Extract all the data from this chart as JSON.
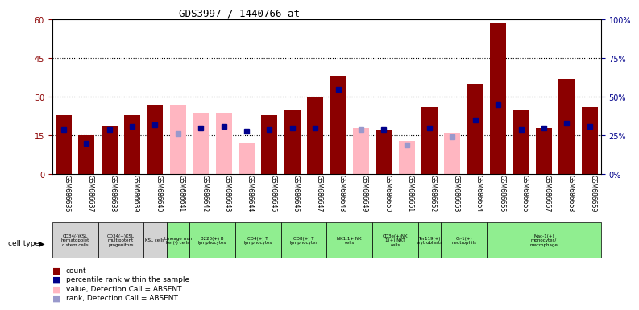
{
  "title": "GDS3997 / 1440766_at",
  "gsm_labels": [
    "GSM686636",
    "GSM686637",
    "GSM686638",
    "GSM686639",
    "GSM686640",
    "GSM686641",
    "GSM686642",
    "GSM686643",
    "GSM686644",
    "GSM686645",
    "GSM686646",
    "GSM686647",
    "GSM686648",
    "GSM686649",
    "GSM686650",
    "GSM686651",
    "GSM686652",
    "GSM686653",
    "GSM686654",
    "GSM686655",
    "GSM686656",
    "GSM686657",
    "GSM686658",
    "GSM686659"
  ],
  "cell_type_groups": [
    {
      "label": "CD34(-)KSL\nhematopoiet\nc stem cells",
      "start": 0,
      "end": 2,
      "color": "#d3d3d3"
    },
    {
      "label": "CD34(+)KSL\nmultipotent\nprogenitors",
      "start": 2,
      "end": 4,
      "color": "#d3d3d3"
    },
    {
      "label": "KSL cells",
      "start": 4,
      "end": 5,
      "color": "#d3d3d3"
    },
    {
      "label": "Lineage mar\nker(-) cells",
      "start": 5,
      "end": 6,
      "color": "#90EE90"
    },
    {
      "label": "B220(+) B\nlymphocytes",
      "start": 6,
      "end": 8,
      "color": "#90EE90"
    },
    {
      "label": "CD4(+) T\nlymphocytes",
      "start": 8,
      "end": 10,
      "color": "#90EE90"
    },
    {
      "label": "CD8(+) T\nlymphocytes",
      "start": 10,
      "end": 12,
      "color": "#90EE90"
    },
    {
      "label": "NK1.1+ NK\ncells",
      "start": 12,
      "end": 14,
      "color": "#90EE90"
    },
    {
      "label": "CD3e(+)NK\n1(+) NKT\ncells",
      "start": 14,
      "end": 16,
      "color": "#90EE90"
    },
    {
      "label": "Ter119(+)\nerytroblasts",
      "start": 16,
      "end": 17,
      "color": "#90EE90"
    },
    {
      "label": "Gr-1(+)\nneutrophils",
      "start": 17,
      "end": 19,
      "color": "#90EE90"
    },
    {
      "label": "Mac-1(+)\nmonocytes/\nmacrophage",
      "start": 19,
      "end": 24,
      "color": "#90EE90"
    }
  ],
  "count_values": [
    23,
    15,
    19,
    23,
    27,
    27,
    24,
    24,
    12,
    23,
    25,
    30,
    38,
    18,
    17,
    13,
    26,
    16,
    35,
    59,
    25,
    18,
    37,
    26
  ],
  "absent_flags": [
    false,
    false,
    false,
    false,
    false,
    true,
    true,
    true,
    true,
    false,
    false,
    false,
    false,
    true,
    false,
    true,
    false,
    true,
    false,
    false,
    false,
    false,
    false,
    false
  ],
  "rank_values": [
    29,
    20,
    29,
    31,
    32,
    26,
    30,
    31,
    28,
    29,
    30,
    30,
    55,
    29,
    29,
    19,
    30,
    24,
    35,
    45,
    29,
    30,
    33,
    31
  ],
  "absent_rank_flags": [
    false,
    false,
    false,
    false,
    false,
    true,
    false,
    false,
    false,
    false,
    false,
    false,
    false,
    true,
    false,
    true,
    false,
    true,
    false,
    false,
    false,
    false,
    false,
    false
  ],
  "color_red": "#8B0000",
  "color_pink": "#FFB6C1",
  "color_blue": "#00008B",
  "color_lightblue": "#9999CC",
  "ylim_left": [
    0,
    60
  ],
  "ylim_right": [
    0,
    100
  ],
  "yticks_left": [
    0,
    15,
    30,
    45,
    60
  ],
  "yticks_right": [
    0,
    25,
    50,
    75,
    100
  ],
  "ytick_labels_left": [
    "0",
    "15",
    "30",
    "45",
    "60"
  ],
  "ytick_labels_right": [
    "0%",
    "25%",
    "50%",
    "75%",
    "100%"
  ]
}
